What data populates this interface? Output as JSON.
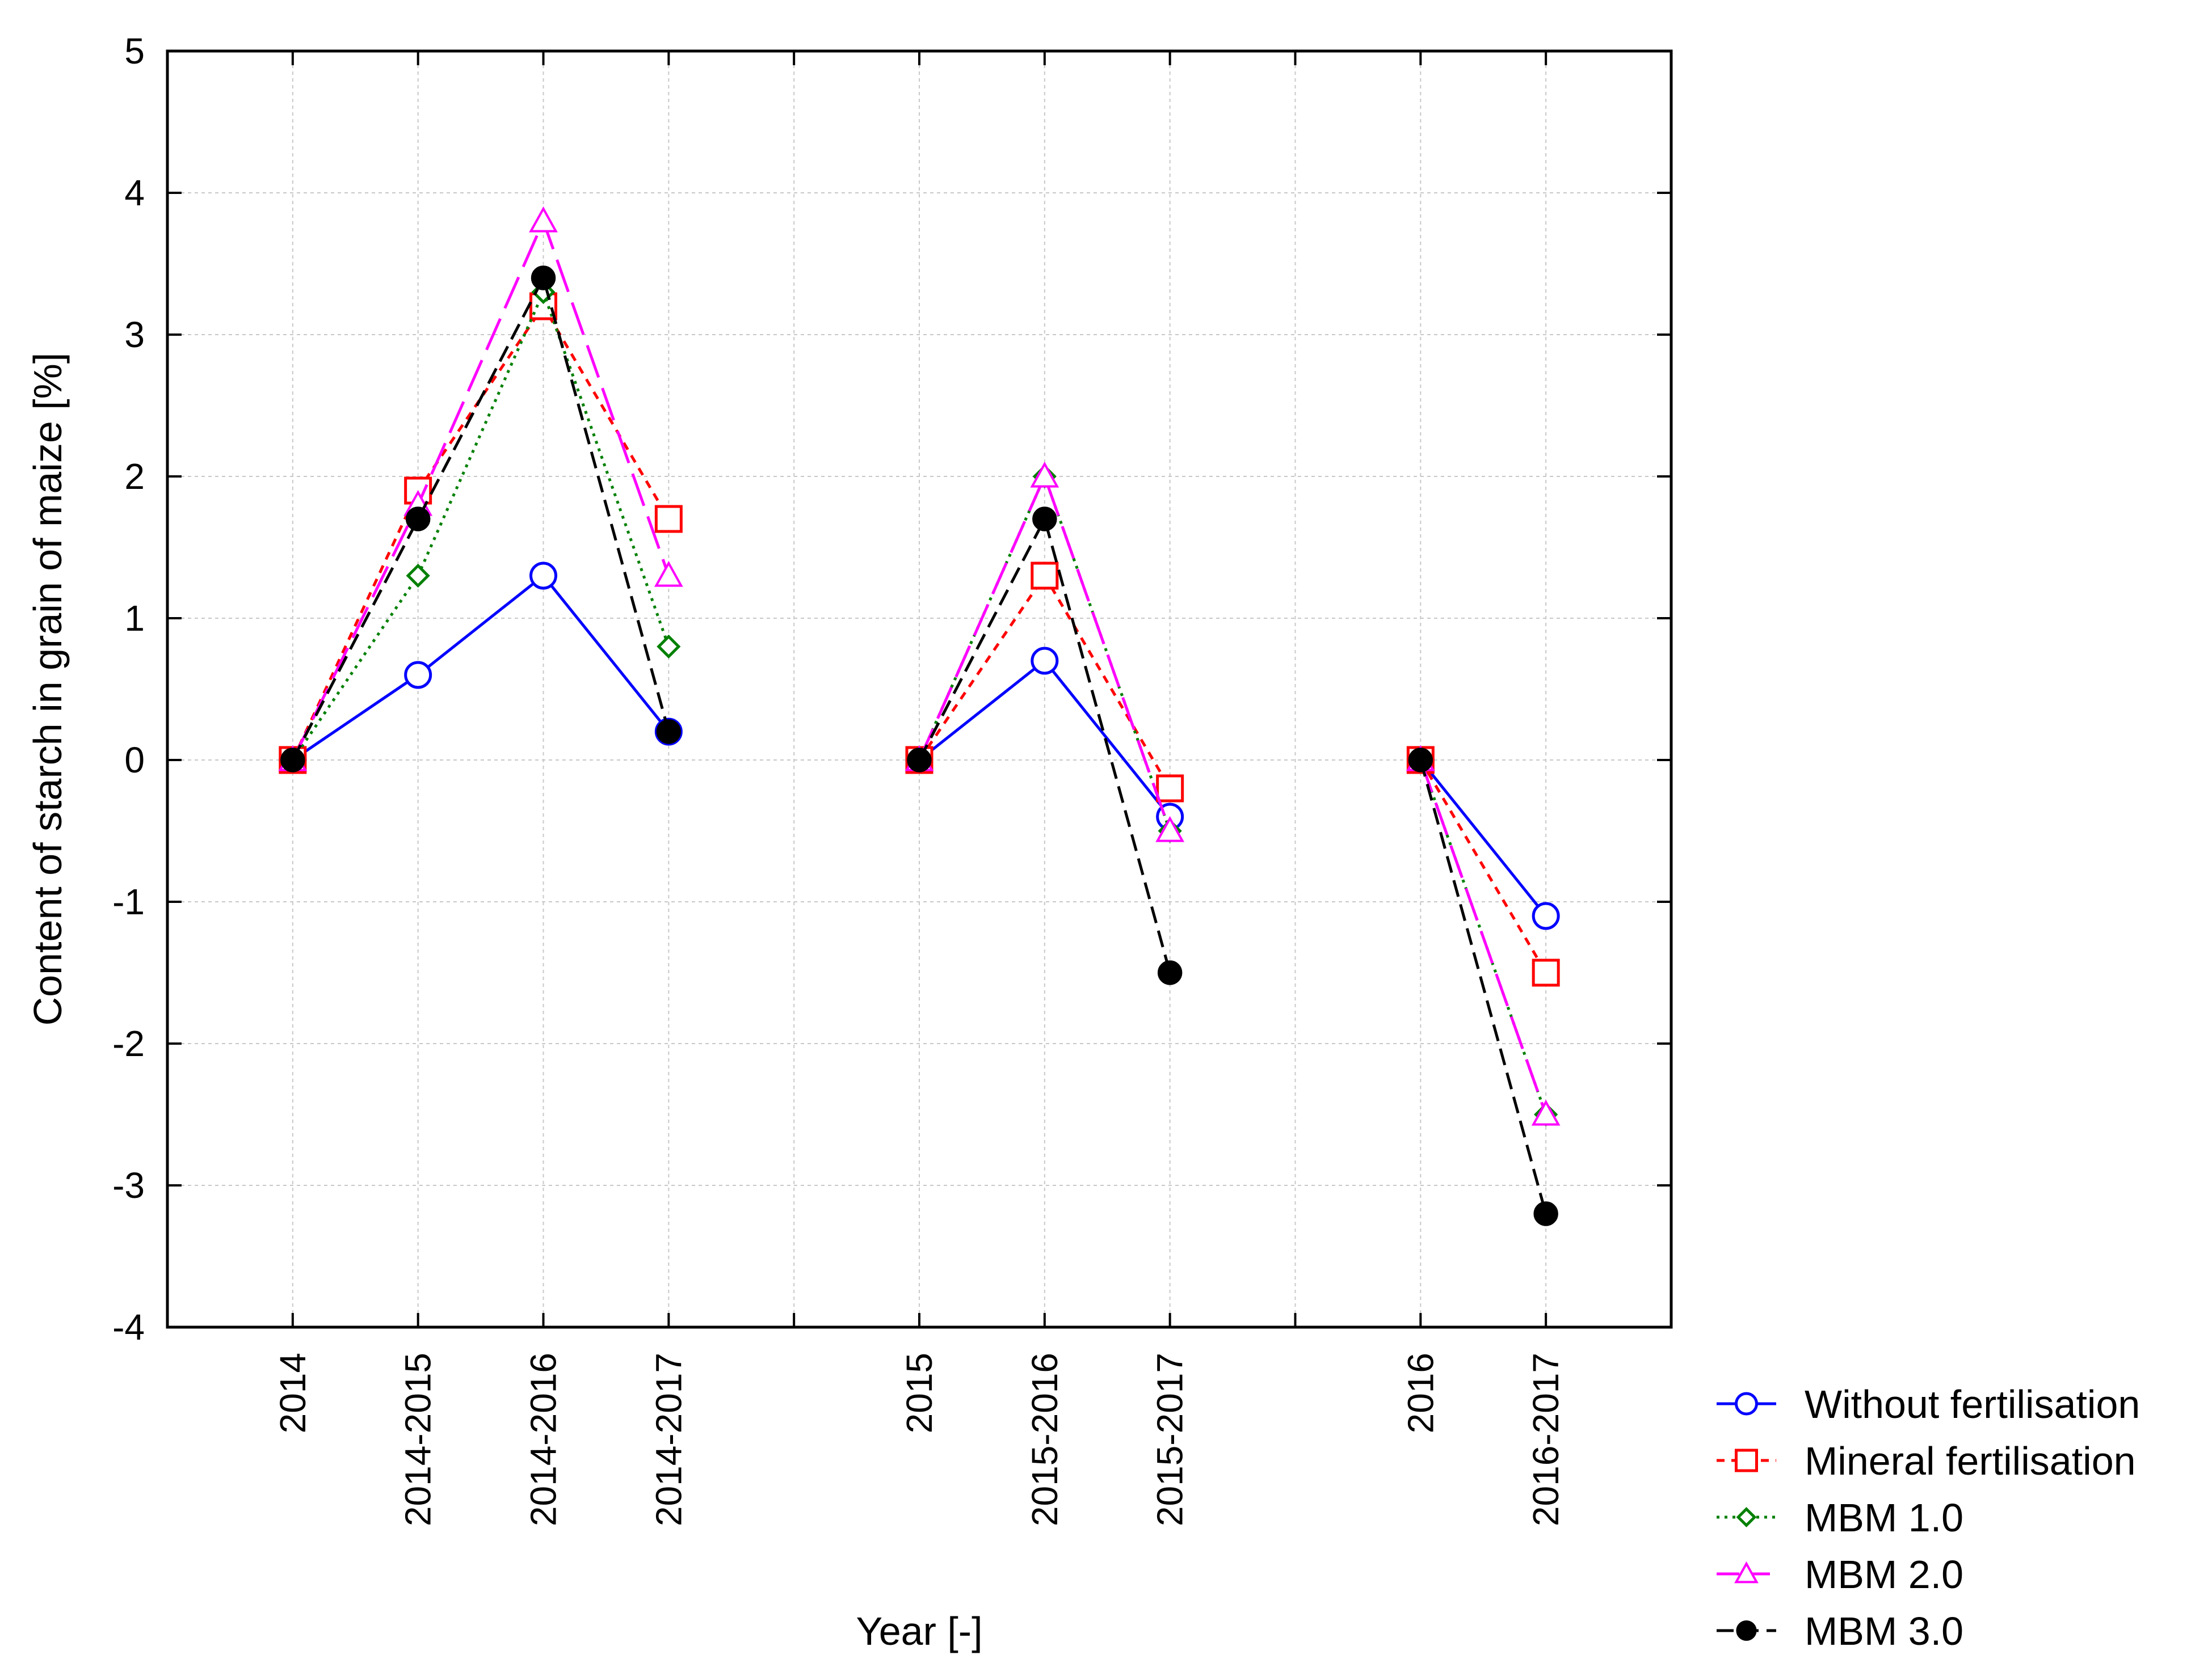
{
  "chart_data": {
    "type": "line",
    "title": "",
    "xlabel": "Year [-]",
    "ylabel": "Content of starch in grain of maize [%]",
    "ylim": [
      -4,
      5
    ],
    "yticks": [
      -4,
      -3,
      -2,
      -1,
      0,
      1,
      2,
      3,
      4,
      5
    ],
    "grid": true,
    "legend_position": "bottom-right outside",
    "categories": [
      "2014",
      "2014-2015",
      "2014-2016",
      "2014-2017",
      "",
      "2015",
      "2015-2016",
      "2015-2017",
      "",
      "2016",
      "2016-2017"
    ],
    "groups": [
      [
        0,
        1,
        2,
        3
      ],
      [
        5,
        6,
        7
      ],
      [
        9,
        10
      ]
    ],
    "series": [
      {
        "name": "Without fertilisation",
        "color": "#0000ff",
        "dash": "solid",
        "marker": "circle-open",
        "values": [
          0,
          0.6,
          1.3,
          0.2,
          null,
          0,
          0.7,
          -0.4,
          null,
          0,
          -1.1
        ]
      },
      {
        "name": "Mineral fertilisation",
        "color": "#ff0000",
        "dash": "dashed-short",
        "marker": "square-open",
        "values": [
          0,
          1.9,
          3.2,
          1.7,
          null,
          0,
          1.3,
          -0.2,
          null,
          0,
          -1.5
        ]
      },
      {
        "name": "MBM 1.0",
        "color": "#008000",
        "dash": "dotted",
        "marker": "diamond-open",
        "values": [
          0,
          1.3,
          3.3,
          0.8,
          null,
          0,
          2.0,
          -0.5,
          null,
          0,
          -2.5
        ]
      },
      {
        "name": "MBM 2.0",
        "color": "#ff00ff",
        "dash": "dashed-long",
        "marker": "triangle-open",
        "values": [
          0,
          1.8,
          3.8,
          1.3,
          null,
          0,
          2.0,
          -0.5,
          null,
          0,
          -2.5
        ]
      },
      {
        "name": "MBM 3.0",
        "color": "#000000",
        "dash": "dashed",
        "marker": "circle-filled",
        "values": [
          0,
          1.7,
          3.4,
          0.2,
          null,
          0,
          1.7,
          -1.5,
          null,
          0,
          -3.2
        ]
      }
    ]
  }
}
